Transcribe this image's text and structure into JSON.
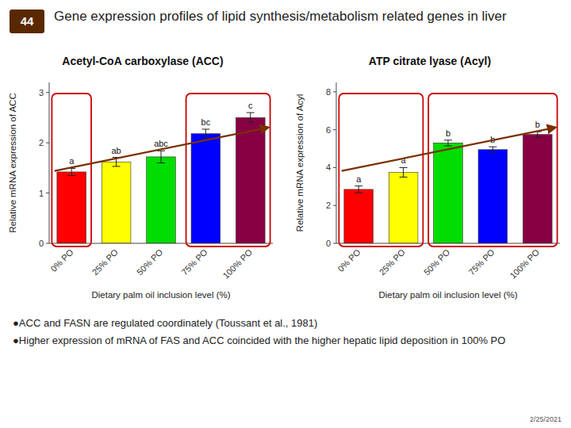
{
  "title": "Gene expression profiles of lipid synthesis/metabolism related genes in liver",
  "annotations": [
    "44",
    "●ACC and FASN are regulated coordinately (Toussant et al., 1981)",
    "●Higher expression of mRNA of FAS and ACC coincided with the higher hepatic lipid deposition in 100% PO",
    "2/25/2021"
  ],
  "chart_data": [
    {
      "type": "bar",
      "title": "Acetyl-CoA carboxylase (ACC)",
      "xlabel": "Dietary palm oil inclusion level (%)",
      "ylabel": "Relative mRNA expression of ACC",
      "categories": [
        "0% PO",
        "25% PO",
        "50% PO",
        "75% PO",
        "100% PO"
      ],
      "values": [
        1.42,
        1.62,
        1.72,
        2.18,
        2.5
      ],
      "errors": [
        0.07,
        0.09,
        0.12,
        0.09,
        0.1
      ],
      "colors": [
        "#ff0000",
        "#ffff00",
        "#00dd00",
        "#0000ff",
        "#880044"
      ],
      "annotations": [
        "a",
        "ab",
        "abc",
        "bc",
        "c"
      ],
      "ylim": [
        0,
        3.2
      ],
      "yticks": [
        0,
        1,
        2,
        3
      ],
      "grid": false
    },
    {
      "type": "bar",
      "title": "ATP citrate lyase (Acyl)",
      "xlabel": "Dietary palm oil inclusion level (%)",
      "ylabel": "Relative mRNA expression of Acyl",
      "categories": [
        "0% PO",
        "25% PO",
        "50% PO",
        "75% PO",
        "100% PO"
      ],
      "values": [
        2.85,
        3.75,
        5.3,
        4.95,
        5.75
      ],
      "errors": [
        0.18,
        0.25,
        0.15,
        0.15,
        0.15
      ],
      "colors": [
        "#ff0000",
        "#ffff00",
        "#00dd00",
        "#0000ff",
        "#880044"
      ],
      "annotations": [
        "a",
        "a",
        "b",
        "b",
        "b"
      ],
      "ylim": [
        0,
        8.5
      ],
      "yticks": [
        0,
        2,
        4,
        6,
        8
      ],
      "grid": false
    }
  ]
}
